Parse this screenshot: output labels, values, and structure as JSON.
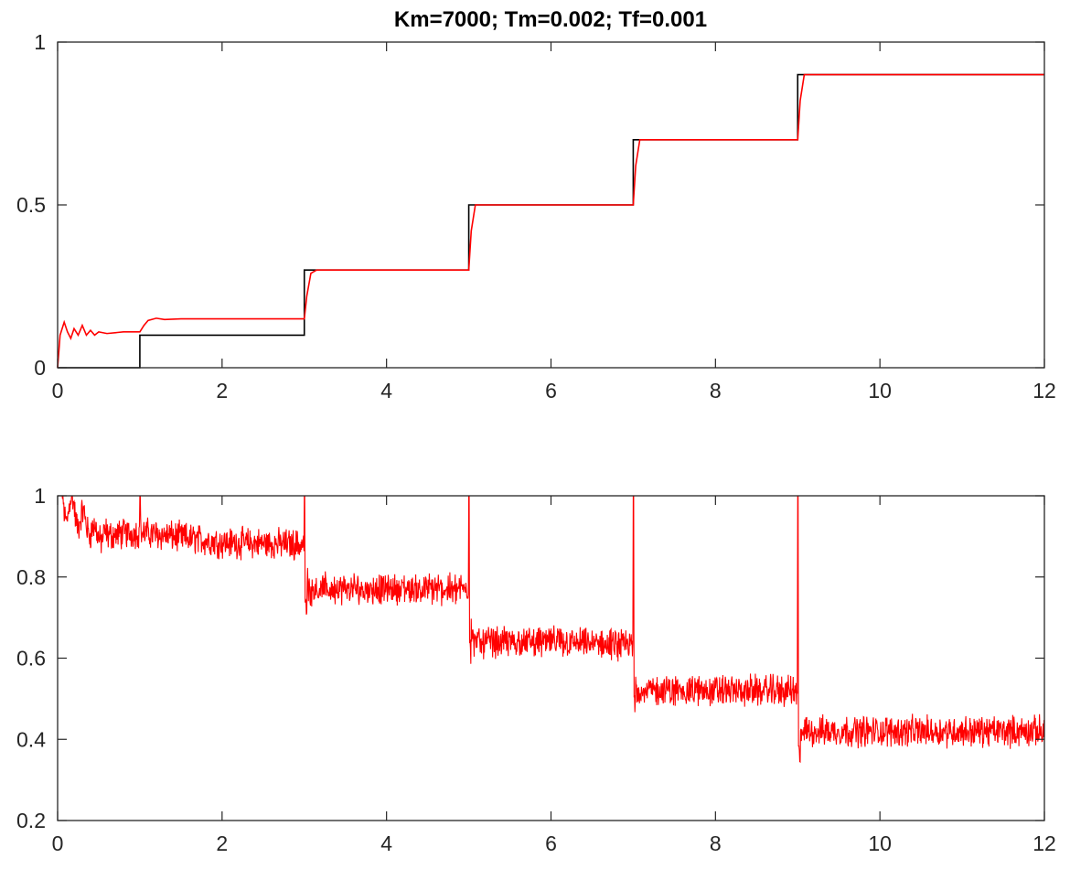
{
  "title": "Km=7000; Tm=0.002; Tf=0.001",
  "chart_data": [
    {
      "type": "line",
      "title": "Km=7000; Tm=0.002; Tf=0.001",
      "xlabel": "",
      "ylabel": "",
      "xlim": [
        0,
        12
      ],
      "ylim": [
        0,
        1
      ],
      "xticks": [
        0,
        2,
        4,
        6,
        8,
        10,
        12
      ],
      "yticks": [
        0,
        0.5,
        1
      ],
      "ytick_labels": [
        "0",
        "0.5",
        "1"
      ],
      "grid": false,
      "series": [
        {
          "color": "#000000",
          "style": "step",
          "x": [
            0,
            1,
            1,
            3,
            3,
            5,
            5,
            7,
            7,
            9,
            9,
            12
          ],
          "y": [
            0,
            0,
            0.1,
            0.1,
            0.3,
            0.3,
            0.5,
            0.5,
            0.7,
            0.7,
            0.9,
            0.9
          ]
        },
        {
          "color": "#ff0000",
          "style": "response",
          "x": [
            0,
            0.03,
            0.08,
            0.12,
            0.16,
            0.2,
            0.25,
            0.3,
            0.35,
            0.4,
            0.45,
            0.5,
            0.6,
            0.8,
            1.0,
            1.05,
            1.1,
            1.2,
            1.3,
            1.5,
            2.0,
            2.5,
            3.0,
            3.03,
            3.08,
            3.15,
            5.0,
            5.03,
            5.08,
            7.0,
            7.03,
            7.08,
            9.0,
            9.03,
            9.08,
            12
          ],
          "y": [
            0,
            0.1,
            0.14,
            0.11,
            0.09,
            0.12,
            0.1,
            0.13,
            0.1,
            0.115,
            0.1,
            0.11,
            0.105,
            0.11,
            0.11,
            0.13,
            0.145,
            0.152,
            0.148,
            0.15,
            0.15,
            0.15,
            0.15,
            0.22,
            0.29,
            0.3,
            0.3,
            0.42,
            0.5,
            0.5,
            0.62,
            0.7,
            0.7,
            0.82,
            0.9,
            0.9
          ]
        }
      ]
    },
    {
      "type": "line",
      "title": "",
      "xlabel": "",
      "ylabel": "",
      "xlim": [
        0,
        12
      ],
      "ylim": [
        0.2,
        1
      ],
      "xticks": [
        0,
        2,
        4,
        6,
        8,
        10,
        12
      ],
      "yticks": [
        0.2,
        0.4,
        0.6,
        0.8,
        1
      ],
      "ytick_labels": [
        "0.2",
        "0.4",
        "0.6",
        "0.8",
        "1"
      ],
      "grid": false,
      "series": [
        {
          "color": "#ff0000",
          "style": "noisy-steps",
          "x": [
            0,
            0.5,
            1,
            2,
            3,
            3.05,
            4,
            5,
            5.05,
            6,
            7,
            7.05,
            8,
            9,
            9.05,
            10,
            12
          ],
          "y": [
            1,
            0.9,
            0.91,
            0.885,
            0.88,
            0.77,
            0.77,
            0.77,
            0.64,
            0.64,
            0.63,
            0.52,
            0.52,
            0.52,
            0.42,
            0.42,
            0.42
          ]
        }
      ]
    }
  ]
}
